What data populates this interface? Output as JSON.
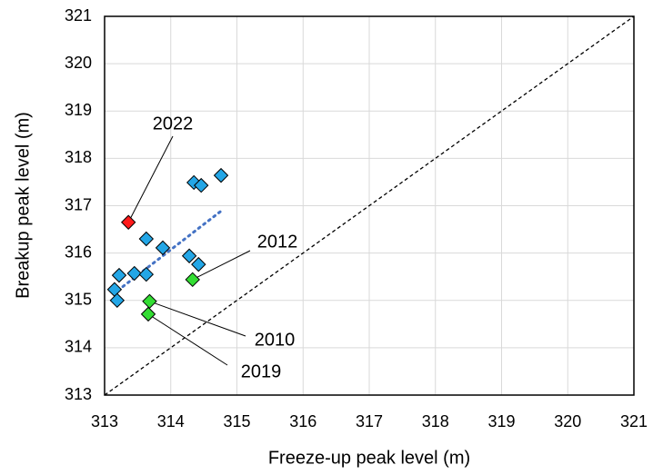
{
  "chart_data": {
    "type": "scatter",
    "x_label": "Freeze-up peak level (m)",
    "y_label": "Breakup peak level (m)",
    "xlim": [
      313,
      321
    ],
    "ylim": [
      313,
      321
    ],
    "xticks": [
      313,
      314,
      315,
      316,
      317,
      318,
      319,
      320,
      321
    ],
    "yticks": [
      313,
      314,
      315,
      316,
      317,
      318,
      319,
      320,
      321
    ],
    "grid": true,
    "series": [
      {
        "color": "#23a6e6",
        "x": [
          313.15,
          313.19,
          313.22,
          313.45,
          313.63,
          313.63,
          313.88,
          314.28,
          314.42,
          314.35,
          314.46,
          314.76
        ],
        "values": [
          315.23,
          315.0,
          315.53,
          315.57,
          315.55,
          316.3,
          316.11,
          315.94,
          315.76,
          317.49,
          317.43,
          317.64
        ]
      },
      {
        "color": "#ff1a1a",
        "x": [
          313.36
        ],
        "values": [
          316.65
        ],
        "point_labels": [
          "2022"
        ]
      },
      {
        "color": "#33dd33",
        "x": [
          314.33,
          313.68,
          313.66
        ],
        "values": [
          315.44,
          314.98,
          314.71
        ],
        "point_labels": [
          "2012",
          "2010",
          "2019"
        ]
      }
    ],
    "trendline": {
      "color": "#4472c4",
      "x": [
        313.2,
        314.8
      ],
      "values": [
        315.21,
        316.93
      ]
    },
    "reference_line": {
      "x": [
        313,
        321
      ],
      "values": [
        313,
        321
      ]
    }
  }
}
